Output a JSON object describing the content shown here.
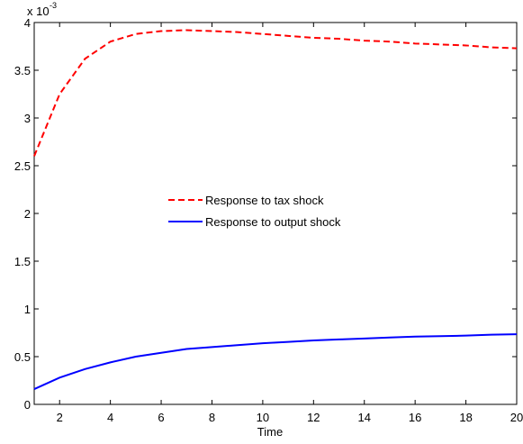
{
  "chart_data": {
    "type": "line",
    "y_multiplier": {
      "base": "x 10",
      "exponent": "-3"
    },
    "x_label": "Time",
    "x": [
      1,
      2,
      3,
      4,
      5,
      6,
      7,
      8,
      9,
      10,
      11,
      12,
      13,
      14,
      15,
      16,
      17,
      18,
      19,
      20
    ],
    "series": [
      {
        "name": "Response to tax shock",
        "color": "#ff0000",
        "line_style": "dashed",
        "values": [
          2.6,
          3.25,
          3.62,
          3.8,
          3.88,
          3.91,
          3.92,
          3.91,
          3.9,
          3.88,
          3.86,
          3.84,
          3.83,
          3.81,
          3.8,
          3.78,
          3.77,
          3.76,
          3.74,
          3.73
        ]
      },
      {
        "name": "Response to output shock",
        "color": "#0000ff",
        "line_style": "solid",
        "values": [
          0.16,
          0.28,
          0.37,
          0.44,
          0.5,
          0.54,
          0.58,
          0.6,
          0.62,
          0.64,
          0.655,
          0.67,
          0.68,
          0.69,
          0.7,
          0.71,
          0.715,
          0.72,
          0.73,
          0.735
        ]
      }
    ],
    "xlim": [
      1,
      20
    ],
    "xticks": [
      2,
      4,
      6,
      8,
      10,
      12,
      14,
      16,
      18,
      20
    ],
    "ylim": [
      0,
      4
    ],
    "yticks": [
      0,
      0.5,
      1,
      1.5,
      2,
      2.5,
      3,
      3.5,
      4
    ],
    "grid": false,
    "legend": "center"
  }
}
